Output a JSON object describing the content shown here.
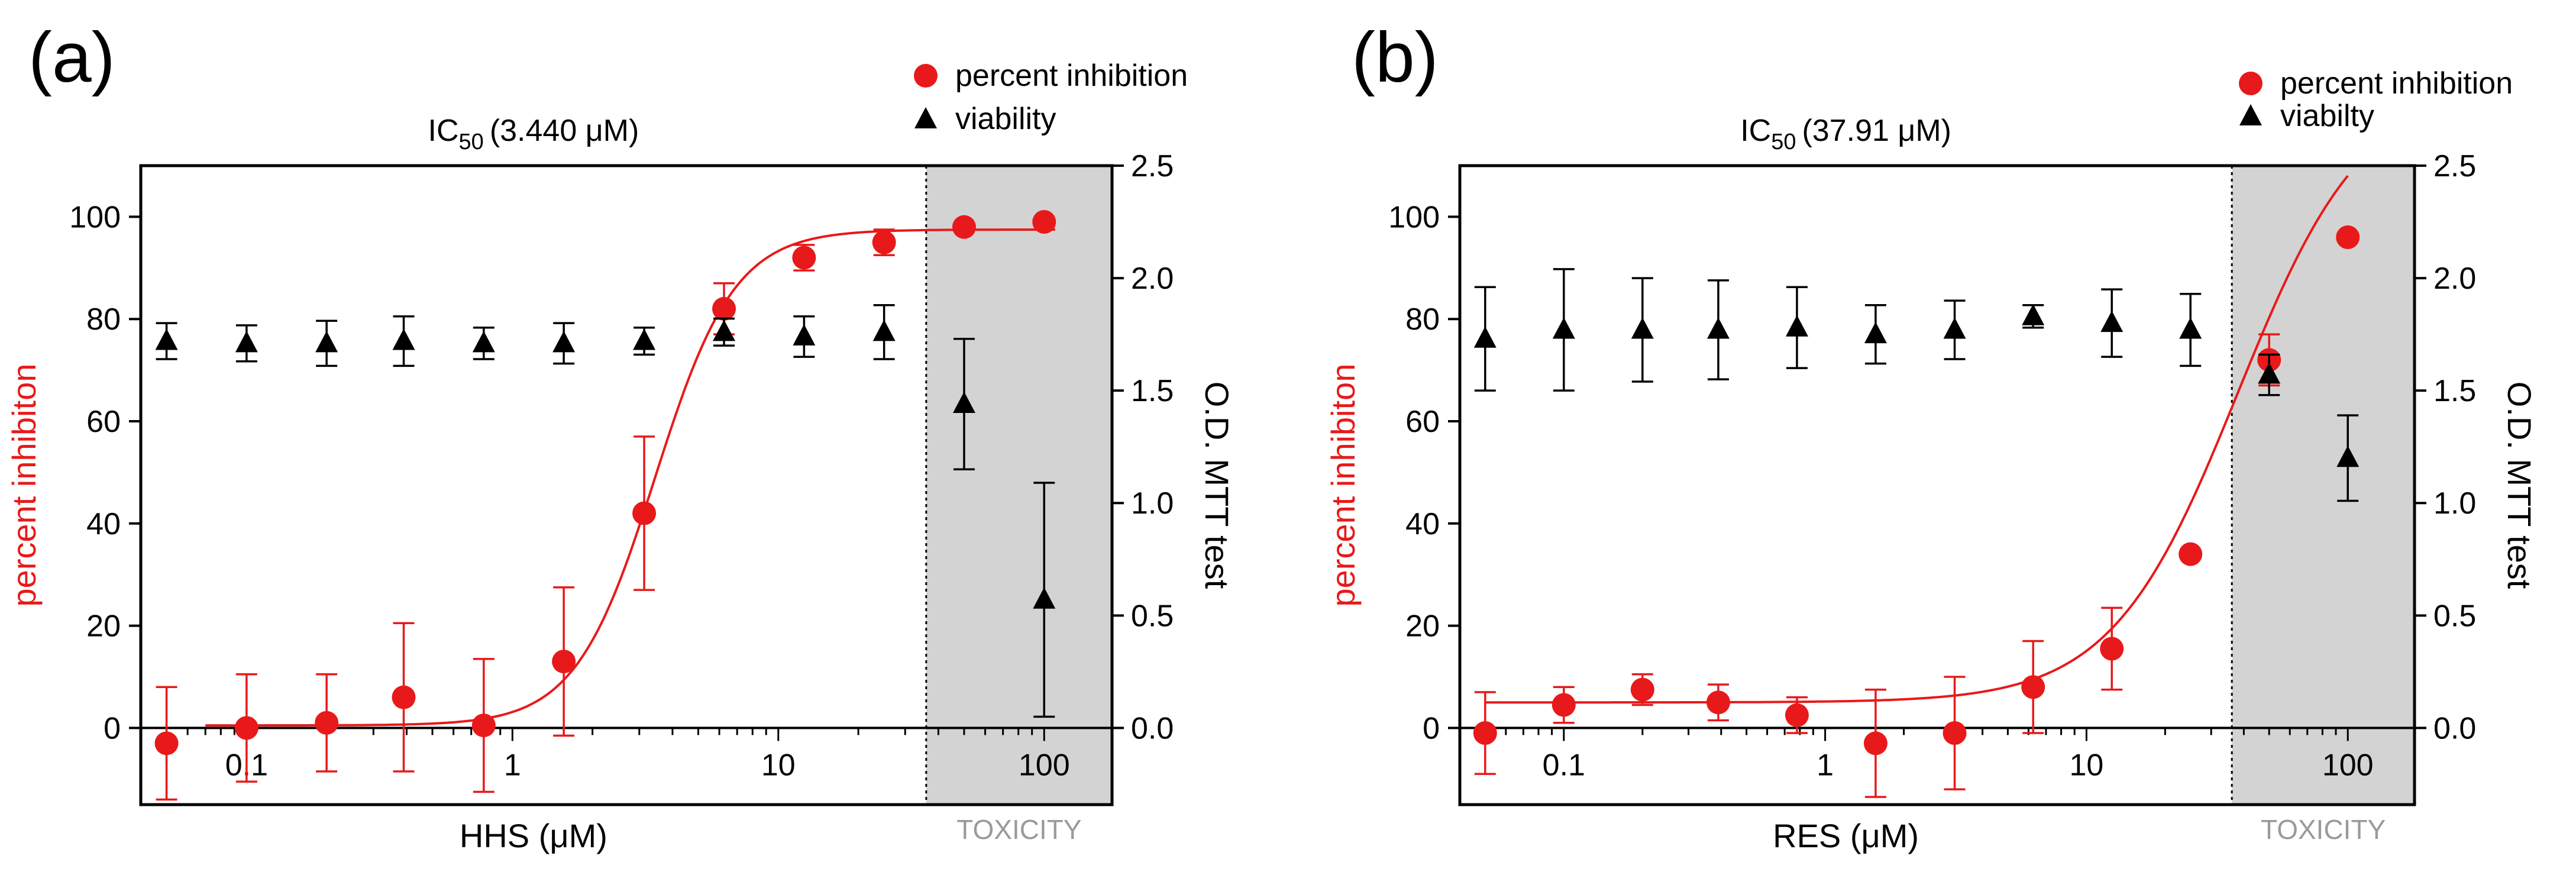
{
  "chart_data": [
    {
      "panel_label": "(a)",
      "type": "scatter",
      "ic50": {
        "prefix": "IC",
        "sub": "50",
        "value": "(3.440 μM)"
      },
      "xlabel": "HHS (μM)",
      "ylabel_left": "percent inhibiton",
      "ylabel_right": "O.D. MTT test",
      "xscale": "log",
      "xlim": [
        0.04,
        180
      ],
      "x_ticks": [
        0.1,
        1,
        10,
        100
      ],
      "x_tick_labels": [
        "0.1",
        "1",
        "10",
        "100"
      ],
      "y_left_lim": [
        -15,
        110
      ],
      "y_left_ticks": [
        0,
        20,
        40,
        60,
        80,
        100
      ],
      "y_left_tick_labels": [
        "0",
        "20",
        "40",
        "60",
        "80",
        "100"
      ],
      "y_right_lim": [
        -0.34091,
        2.5
      ],
      "y_right_ticks": [
        0,
        0.5,
        1,
        1.5,
        2,
        2.5
      ],
      "y_right_tick_labels": [
        "0.0",
        "0.5",
        "1.0",
        "1.5",
        "2.0",
        "2.5"
      ],
      "toxicity_region": {
        "from": 36,
        "to": 180,
        "label": "TOXICITY"
      },
      "legend": {
        "position": "top-right",
        "entries": [
          "percent inhibition",
          "viability"
        ]
      },
      "fit": {
        "bottom": 0.5,
        "top": 97.5,
        "ic50": 3.44,
        "hill": 2.9,
        "x_from": 0.07,
        "x_to": 110
      },
      "series": [
        {
          "name": "percent inhibition",
          "color": "#e8191a",
          "marker": "circle",
          "axis": "left",
          "x": [
            0.05,
            0.1,
            0.2,
            0.39,
            0.78,
            1.56,
            3.13,
            6.25,
            12.5,
            25,
            50,
            100
          ],
          "y": [
            -3,
            0,
            1,
            6,
            0.5,
            13,
            42,
            82,
            92,
            95,
            98,
            99
          ],
          "err": [
            11,
            10.5,
            9.5,
            14.5,
            13,
            14.5,
            15,
            5,
            2.5,
            2.5,
            0,
            0
          ]
        },
        {
          "name": "viability",
          "color": "#000000",
          "marker": "triangle",
          "axis": "right",
          "x": [
            0.05,
            0.1,
            0.2,
            0.39,
            0.78,
            1.56,
            3.13,
            6.25,
            12.5,
            25,
            50,
            100
          ],
          "y": [
            1.72,
            1.71,
            1.71,
            1.72,
            1.71,
            1.71,
            1.72,
            1.76,
            1.74,
            1.76,
            1.44,
            0.57
          ],
          "err": [
            0.08,
            0.08,
            0.1,
            0.11,
            0.07,
            0.09,
            0.06,
            0.06,
            0.09,
            0.12,
            0.29,
            0.52
          ]
        }
      ]
    },
    {
      "panel_label": "(b)",
      "type": "scatter",
      "ic50": {
        "prefix": "IC",
        "sub": "50",
        "value": "(37.91 μM)"
      },
      "xlabel": "RES (μM)",
      "ylabel_left": "percent inhibiton",
      "ylabel_right": "O.D. MTT test",
      "xscale": "log",
      "xlim": [
        0.04,
        180
      ],
      "x_ticks": [
        0.1,
        1,
        10,
        100
      ],
      "x_tick_labels": [
        "0.1",
        "1",
        "10",
        "100"
      ],
      "y_left_lim": [
        -15,
        110
      ],
      "y_left_ticks": [
        0,
        20,
        40,
        60,
        80,
        100
      ],
      "y_left_tick_labels": [
        "0",
        "20",
        "40",
        "60",
        "80",
        "100"
      ],
      "y_right_lim": [
        -0.34091,
        2.5
      ],
      "y_right_ticks": [
        0,
        0.5,
        1,
        1.5,
        2,
        2.5
      ],
      "y_right_tick_labels": [
        "0.0",
        "0.5",
        "1.0",
        "1.5",
        "2.0",
        "2.5"
      ],
      "toxicity_region": {
        "from": 36,
        "to": 180,
        "label": "TOXICITY"
      },
      "legend": {
        "position": "top-right",
        "entries": [
          "percent inhibition",
          "viabilty"
        ]
      },
      "fit": {
        "bottom": 5,
        "top": 126,
        "ic50": 37.91,
        "hill": 1.8,
        "x_from": 0.05,
        "x_to": 100
      },
      "series": [
        {
          "name": "percent inhibition",
          "color": "#e8191a",
          "marker": "circle",
          "axis": "left",
          "x": [
            0.05,
            0.1,
            0.2,
            0.39,
            0.78,
            1.56,
            3.13,
            6.25,
            12.5,
            25,
            50,
            100
          ],
          "y": [
            -1,
            4.5,
            7.5,
            5,
            2.5,
            -3,
            -1,
            8,
            15.5,
            34,
            72,
            96
          ],
          "err": [
            8,
            3.5,
            3,
            3.5,
            3.5,
            10.5,
            11,
            9,
            8,
            0,
            5,
            0
          ]
        },
        {
          "name": "viability",
          "color": "#000000",
          "marker": "triangle",
          "axis": "right",
          "x": [
            0.05,
            0.1,
            0.2,
            0.39,
            0.78,
            1.56,
            3.13,
            6.25,
            12.5,
            25,
            50,
            100
          ],
          "y": [
            1.73,
            1.77,
            1.77,
            1.77,
            1.78,
            1.75,
            1.77,
            1.83,
            1.8,
            1.77,
            1.57,
            1.2
          ],
          "err": [
            0.23,
            0.27,
            0.23,
            0.22,
            0.18,
            0.13,
            0.13,
            0.05,
            0.15,
            0.16,
            0.09,
            0.19
          ]
        }
      ]
    }
  ]
}
